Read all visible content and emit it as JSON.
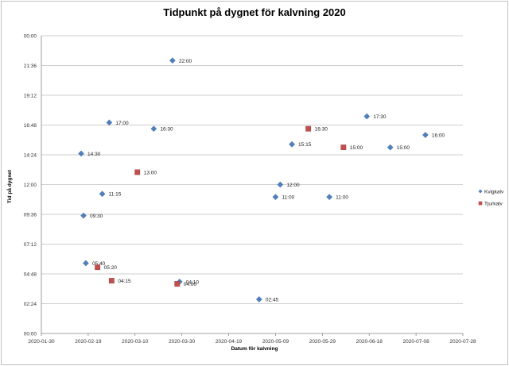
{
  "chart_data": {
    "type": "scatter",
    "title": "Tidpunkt på dygnet för kalvning 2020",
    "xlabel": "Datum för kalvning",
    "ylabel": "Tid på dygnet",
    "x_ticks": [
      "2020-01-30",
      "2020-02-19",
      "2020-03-10",
      "2020-03-30",
      "2020-04-19",
      "2020-05-09",
      "2020-05-29",
      "2020-06-18",
      "2020-07-08",
      "2020-07-28"
    ],
    "y_ticks": [
      "00:00",
      "02:24",
      "04:48",
      "07:12",
      "09:36",
      "12:00",
      "14:24",
      "16:48",
      "19:12",
      "21:36",
      "00:00"
    ],
    "xlim": [
      "2020-01-30",
      "2020-07-28"
    ],
    "ylim": [
      "00:00",
      "24:00"
    ],
    "grid": "horizontal",
    "legend_position": "right",
    "series": [
      {
        "name": "Kvigkalv",
        "color": "#4f81bd",
        "marker": "diamond",
        "points": [
          {
            "x": "2020-02-16",
            "y": "14:30",
            "label": "14:30"
          },
          {
            "x": "2020-02-17",
            "y": "09:30",
            "label": "09:30"
          },
          {
            "x": "2020-02-18",
            "y": "05:40",
            "label": "05:40"
          },
          {
            "x": "2020-02-25",
            "y": "11:15",
            "label": "11:15"
          },
          {
            "x": "2020-02-28",
            "y": "17:00",
            "label": "17:00"
          },
          {
            "x": "2020-03-18",
            "y": "16:30",
            "label": "16:30"
          },
          {
            "x": "2020-03-26",
            "y": "22:00",
            "label": "22:00"
          },
          {
            "x": "2020-03-29",
            "y": "04:10",
            "label": "04:10"
          },
          {
            "x": "2020-05-02",
            "y": "02:45",
            "label": "02:45"
          },
          {
            "x": "2020-05-09",
            "y": "11:00",
            "label": "11:00"
          },
          {
            "x": "2020-05-11",
            "y": "12:00",
            "label": "12:00"
          },
          {
            "x": "2020-05-16",
            "y": "15:15",
            "label": "15:15"
          },
          {
            "x": "2020-06-01",
            "y": "11:00",
            "label": "11:00"
          },
          {
            "x": "2020-06-17",
            "y": "17:30",
            "label": "17:30"
          },
          {
            "x": "2020-06-27",
            "y": "15:00",
            "label": "15:00"
          },
          {
            "x": "2020-07-12",
            "y": "16:00",
            "label": "16:00"
          }
        ]
      },
      {
        "name": "Tjurkalv",
        "color": "#c0504d",
        "marker": "square",
        "points": [
          {
            "x": "2020-02-23",
            "y": "05:20",
            "label": "05:20"
          },
          {
            "x": "2020-02-29",
            "y": "04:15",
            "label": "04:15"
          },
          {
            "x": "2020-03-11",
            "y": "13:00",
            "label": "13:00"
          },
          {
            "x": "2020-03-28",
            "y": "04:00",
            "label": "04:00"
          },
          {
            "x": "2020-05-23",
            "y": "16:30",
            "label": "16:30"
          },
          {
            "x": "2020-06-07",
            "y": "15:00",
            "label": "15:00"
          }
        ]
      }
    ]
  }
}
